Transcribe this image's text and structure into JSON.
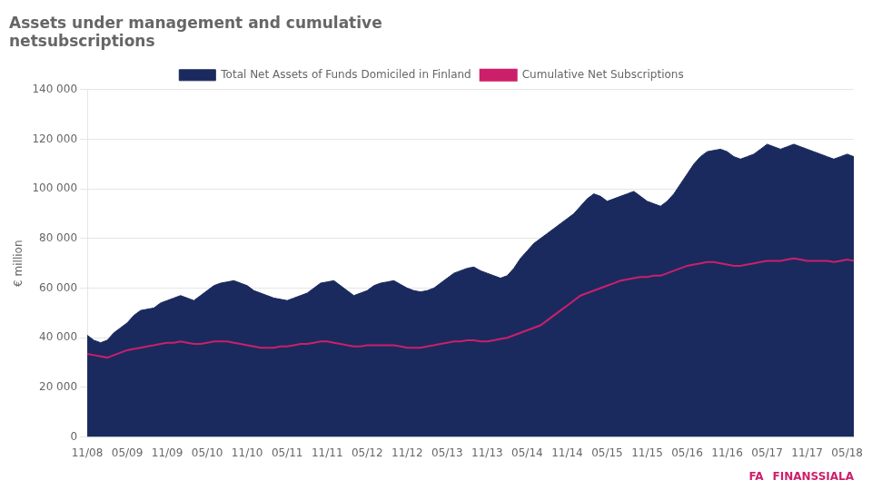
{
  "chart_data": {
    "type": "line",
    "title": [
      "Assets under management and cumulative",
      "netsubscriptions"
    ],
    "ylabel": "€ million",
    "categories": [
      "11/08",
      null,
      null,
      null,
      null,
      null,
      "05/09",
      null,
      null,
      null,
      null,
      null,
      "11/09",
      null,
      null,
      null,
      null,
      null,
      "05/10",
      null,
      null,
      null,
      null,
      null,
      "11/10",
      null,
      null,
      null,
      null,
      null,
      "05/11",
      null,
      null,
      null,
      null,
      null,
      "11/11",
      null,
      null,
      null,
      null,
      null,
      "05/12",
      null,
      null,
      null,
      null,
      null,
      "11/12",
      null,
      null,
      null,
      null,
      null,
      "05/13",
      null,
      null,
      null,
      null,
      null,
      "11/13",
      null,
      null,
      null,
      null,
      null,
      "05/14",
      null,
      null,
      null,
      null,
      null,
      "11/14",
      null,
      null,
      null,
      null,
      null,
      "05/15",
      null,
      null,
      null,
      null,
      null,
      "11/15",
      null,
      null,
      null,
      null,
      null,
      "05/16",
      null,
      null,
      null,
      null,
      null,
      "11/16",
      null,
      null,
      null,
      null,
      null,
      "05/17",
      null,
      null,
      null,
      null,
      null,
      "11/17",
      null,
      null,
      null,
      null,
      null,
      "05/18",
      null
    ],
    "series": [
      {
        "name": "Total Net Assets of Funds Domiciled in Finland",
        "type": "area",
        "color": "#1a2a5e",
        "values": [
          41000,
          39000,
          38000,
          39000,
          42000,
          44000,
          46000,
          49000,
          51000,
          51500,
          52000,
          54000,
          55000,
          56000,
          57000,
          56000,
          55000,
          57000,
          59000,
          61000,
          62000,
          62500,
          63000,
          62000,
          61000,
          59000,
          58000,
          57000,
          56000,
          55500,
          55000,
          56000,
          57000,
          58000,
          60000,
          62000,
          62500,
          63000,
          61000,
          59000,
          57000,
          58000,
          59000,
          61000,
          62000,
          62500,
          63000,
          61500,
          60000,
          59000,
          58500,
          59000,
          60000,
          62000,
          64000,
          66000,
          67000,
          68000,
          68500,
          67000,
          66000,
          65000,
          64000,
          65000,
          68000,
          72000,
          75000,
          78000,
          80000,
          82000,
          84000,
          86000,
          88000,
          90000,
          93000,
          96000,
          98000,
          97000,
          95000,
          96000,
          97000,
          98000,
          99000,
          97000,
          95000,
          94000,
          93000,
          95000,
          98000,
          102000,
          106000,
          110000,
          113000,
          115000,
          115500,
          116000,
          115000,
          113000,
          112000,
          113000,
          114000,
          116000,
          118000,
          117000,
          116000,
          117000,
          118000,
          117000,
          116000,
          115000,
          114000,
          113000,
          112000,
          113000,
          114000,
          113000
        ]
      },
      {
        "name": "Cumulative Net Subscriptions",
        "type": "line",
        "color": "#cc1f6a",
        "values": [
          33500,
          33000,
          32500,
          32000,
          33000,
          34000,
          35000,
          35500,
          36000,
          36500,
          37000,
          37500,
          38000,
          38000,
          38500,
          38000,
          37500,
          37500,
          38000,
          38500,
          38500,
          38500,
          38000,
          37500,
          37000,
          36500,
          36000,
          36000,
          36000,
          36500,
          36500,
          37000,
          37500,
          37500,
          38000,
          38500,
          38500,
          38000,
          37500,
          37000,
          36500,
          36500,
          37000,
          37000,
          37000,
          37000,
          37000,
          36500,
          36000,
          36000,
          36000,
          36500,
          37000,
          37500,
          38000,
          38500,
          38500,
          39000,
          39000,
          38500,
          38500,
          39000,
          39500,
          40000,
          41000,
          42000,
          43000,
          44000,
          45000,
          47000,
          49000,
          51000,
          53000,
          55000,
          57000,
          58000,
          59000,
          60000,
          61000,
          62000,
          63000,
          63500,
          64000,
          64500,
          64500,
          65000,
          65000,
          66000,
          67000,
          68000,
          69000,
          69500,
          70000,
          70500,
          70500,
          70000,
          69500,
          69000,
          69000,
          69500,
          70000,
          70500,
          71000,
          71000,
          71000,
          71500,
          72000,
          71500,
          71000,
          71000,
          71000,
          71000,
          70500,
          71000,
          71500,
          71000
        ]
      }
    ],
    "ylim": [
      0,
      140000
    ],
    "yticks": [
      0,
      {
        "value": 20000,
        "label": "20 000"
      },
      {
        "value": 40000,
        "label": "40 000"
      },
      {
        "value": 60000,
        "label": "60 000"
      },
      {
        "value": 80000,
        "label": "80 000"
      },
      {
        "value": 100000,
        "label": "100 000"
      },
      {
        "value": 120000,
        "label": "120 000"
      },
      {
        "value": 140000,
        "label": "140 000"
      }
    ],
    "grid": "y",
    "legend": "top",
    "annotations": [
      {
        "text": "FA",
        "color": "#cc1f6a"
      },
      {
        "text": "FINANSSIALA",
        "color": "#cc1f6a"
      }
    ]
  }
}
